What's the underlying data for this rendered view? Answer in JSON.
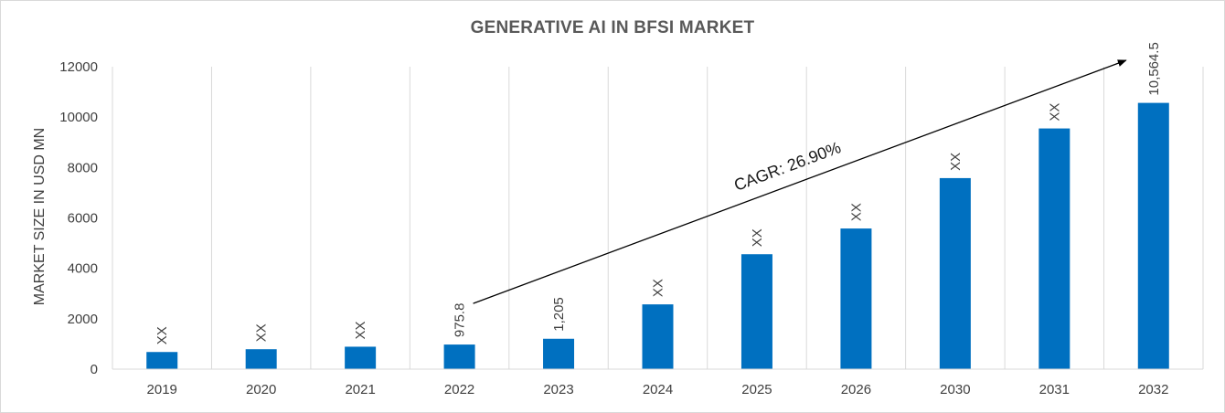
{
  "chart_data": {
    "type": "bar",
    "title": "GENERATIVE AI IN BFSI MARKET",
    "xlabel": "",
    "ylabel": "MARKET SIZE IN USD MN",
    "ylim": [
      0,
      12000
    ],
    "yticks": [
      0,
      2000,
      4000,
      6000,
      8000,
      10000,
      12000
    ],
    "grid": "vertical",
    "categories": [
      "2019",
      "2020",
      "2021",
      "2022",
      "2023",
      "2024",
      "2025",
      "2026",
      "2030",
      "2031",
      "2032"
    ],
    "values": [
      680,
      790,
      890,
      975.8,
      1205,
      2570,
      4560,
      5580,
      7580,
      9550,
      10564.5
    ],
    "data_labels": [
      "XX",
      "XX",
      "XX",
      "975.8",
      "1,205",
      "XX",
      "XX",
      "XX",
      "XX",
      "XX",
      "10,564.5"
    ],
    "bar_color": "#0070c0",
    "annotation": {
      "text": "CAGR: 26.90%",
      "arrow_from_category": "2022",
      "arrow_to_category": "2032"
    }
  }
}
